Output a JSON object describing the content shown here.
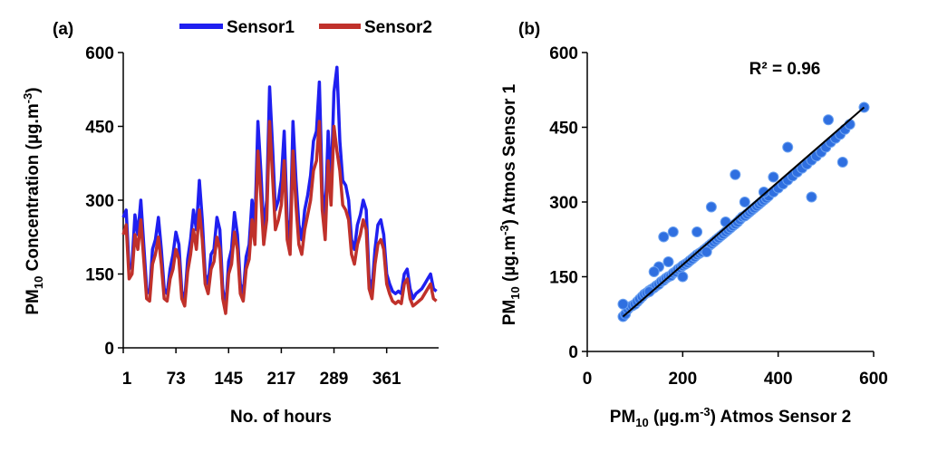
{
  "colors": {
    "sensor1": "#1f1ff0",
    "sensor2": "#c0312b",
    "scatter_fill": "#2f6fe0",
    "scatter_stroke": "#6aa0f0",
    "fit_line": "#000000"
  },
  "chart_data": [
    {
      "type": "line",
      "panel_label": "(a)",
      "xlabel": "No. of hours",
      "ylabel_main": "PM",
      "ylabel_sub": "10",
      "ylabel_rest": " Concentration (µg.m",
      "ylabel_sup": "-3",
      "ylabel_end": ")",
      "x_ticks": [
        "1",
        "73",
        "145",
        "217",
        "289",
        "361"
      ],
      "x_tick_values": [
        1,
        73,
        145,
        217,
        289,
        361
      ],
      "xlim": [
        1,
        432
      ],
      "y_ticks": [
        "0",
        "150",
        "300",
        "450",
        "600"
      ],
      "ylim": [
        0,
        600
      ],
      "legend": "top",
      "series": [
        {
          "name": "Sensor1",
          "x": [
            1,
            5,
            9,
            13,
            17,
            21,
            25,
            29,
            33,
            37,
            41,
            45,
            49,
            53,
            57,
            61,
            65,
            69,
            73,
            77,
            81,
            85,
            89,
            93,
            97,
            101,
            105,
            109,
            113,
            117,
            121,
            125,
            129,
            133,
            137,
            141,
            145,
            149,
            153,
            157,
            161,
            165,
            169,
            173,
            177,
            181,
            185,
            189,
            193,
            197,
            201,
            205,
            209,
            213,
            217,
            221,
            225,
            229,
            233,
            237,
            241,
            245,
            249,
            253,
            257,
            261,
            265,
            269,
            273,
            277,
            281,
            285,
            289,
            293,
            297,
            301,
            305,
            309,
            313,
            317,
            321,
            325,
            329,
            333,
            337,
            341,
            345,
            349,
            353,
            357,
            361,
            365,
            369,
            373,
            377,
            381,
            385,
            389,
            393,
            397,
            401,
            405,
            409,
            413,
            417,
            421,
            425,
            429
          ],
          "values": [
            265,
            280,
            160,
            170,
            270,
            230,
            300,
            210,
            120,
            110,
            200,
            220,
            265,
            200,
            120,
            110,
            160,
            190,
            235,
            210,
            115,
            95,
            180,
            220,
            280,
            240,
            340,
            260,
            150,
            130,
            190,
            200,
            265,
            240,
            120,
            80,
            175,
            200,
            275,
            230,
            130,
            110,
            185,
            210,
            300,
            250,
            460,
            360,
            240,
            300,
            530,
            410,
            280,
            300,
            340,
            440,
            260,
            220,
            460,
            340,
            250,
            220,
            280,
            310,
            350,
            420,
            440,
            540,
            320,
            260,
            440,
            330,
            520,
            570,
            420,
            340,
            330,
            300,
            220,
            200,
            250,
            270,
            300,
            280,
            140,
            120,
            200,
            250,
            260,
            230,
            150,
            130,
            115,
            110,
            115,
            110,
            150,
            160,
            120,
            100,
            110,
            115,
            120,
            130,
            140,
            150,
            120,
            115
          ],
          "color_key": "sensor1"
        },
        {
          "name": "Sensor2",
          "x": [
            1,
            5,
            9,
            13,
            17,
            21,
            25,
            29,
            33,
            37,
            41,
            45,
            49,
            53,
            57,
            61,
            65,
            69,
            73,
            77,
            81,
            85,
            89,
            93,
            97,
            101,
            105,
            109,
            113,
            117,
            121,
            125,
            129,
            133,
            137,
            141,
            145,
            149,
            153,
            157,
            161,
            165,
            169,
            173,
            177,
            181,
            185,
            189,
            193,
            197,
            201,
            205,
            209,
            213,
            217,
            221,
            225,
            229,
            233,
            237,
            241,
            245,
            249,
            253,
            257,
            261,
            265,
            269,
            273,
            277,
            281,
            285,
            289,
            293,
            297,
            301,
            305,
            309,
            313,
            317,
            321,
            325,
            329,
            333,
            337,
            341,
            345,
            349,
            353,
            357,
            361,
            365,
            369,
            373,
            377,
            381,
            385,
            389,
            393,
            397,
            401,
            405,
            409,
            413,
            417,
            421,
            425,
            429
          ],
          "values": [
            230,
            250,
            140,
            150,
            230,
            200,
            260,
            180,
            100,
            95,
            170,
            190,
            225,
            170,
            100,
            95,
            140,
            160,
            200,
            180,
            100,
            85,
            155,
            190,
            240,
            200,
            280,
            220,
            130,
            110,
            160,
            175,
            225,
            200,
            100,
            70,
            150,
            170,
            235,
            200,
            110,
            95,
            160,
            180,
            260,
            210,
            400,
            310,
            210,
            260,
            460,
            350,
            240,
            260,
            290,
            380,
            220,
            190,
            400,
            290,
            210,
            190,
            240,
            270,
            300,
            360,
            380,
            460,
            280,
            220,
            380,
            290,
            450,
            400,
            360,
            290,
            280,
            260,
            190,
            170,
            210,
            230,
            260,
            240,
            120,
            100,
            170,
            210,
            220,
            200,
            130,
            110,
            95,
            90,
            95,
            90,
            130,
            140,
            100,
            85,
            90,
            95,
            100,
            110,
            120,
            130,
            100,
            95
          ],
          "color_key": "sensor2"
        }
      ]
    },
    {
      "type": "scatter",
      "panel_label": "(b)",
      "xlabel_main": "PM",
      "xlabel_sub": "10",
      "xlabel_rest": " (µg.m",
      "xlabel_sup": "-3",
      "xlabel_end": ") Atmos Sensor 2",
      "ylabel_main": "PM",
      "ylabel_sub": "10",
      "ylabel_rest": " (µg.m",
      "ylabel_sup": "-3",
      "ylabel_end": ") Atmos Sensor 1",
      "x_ticks": [
        "0",
        "200",
        "400",
        "600"
      ],
      "xlim": [
        0,
        600
      ],
      "y_ticks": [
        "0",
        "150",
        "300",
        "450",
        "600"
      ],
      "ylim": [
        0,
        600
      ],
      "annotation": "R² = 0.96",
      "fit_line": {
        "x": [
          75,
          580
        ],
        "y": [
          70,
          490
        ]
      },
      "points": {
        "x": [
          75,
          80,
          85,
          90,
          95,
          100,
          105,
          110,
          115,
          120,
          125,
          130,
          135,
          140,
          145,
          150,
          155,
          160,
          165,
          170,
          175,
          180,
          185,
          190,
          195,
          200,
          205,
          210,
          215,
          220,
          225,
          230,
          235,
          240,
          245,
          250,
          255,
          260,
          265,
          270,
          275,
          280,
          285,
          290,
          295,
          300,
          305,
          310,
          315,
          320,
          325,
          330,
          335,
          340,
          345,
          350,
          355,
          360,
          365,
          370,
          375,
          380,
          390,
          400,
          410,
          420,
          430,
          440,
          450,
          460,
          470,
          480,
          490,
          500,
          510,
          520,
          530,
          540,
          550,
          580,
          75,
          150,
          160,
          180,
          140,
          200,
          250,
          310,
          420,
          470,
          535,
          505,
          130,
          170,
          230,
          260,
          290,
          330,
          370,
          390
        ],
        "y": [
          70,
          75,
          85,
          90,
          92,
          95,
          100,
          105,
          110,
          115,
          118,
          122,
          125,
          128,
          132,
          135,
          140,
          143,
          147,
          150,
          152,
          157,
          160,
          165,
          168,
          172,
          175,
          178,
          182,
          186,
          190,
          194,
          197,
          200,
          204,
          208,
          212,
          216,
          220,
          224,
          228,
          232,
          236,
          240,
          244,
          248,
          252,
          256,
          260,
          265,
          270,
          272,
          276,
          280,
          284,
          288,
          292,
          296,
          300,
          304,
          308,
          312,
          320,
          328,
          336,
          344,
          352,
          360,
          368,
          376,
          384,
          392,
          400,
          410,
          420,
          428,
          436,
          446,
          456,
          490,
          95,
          170,
          230,
          240,
          160,
          150,
          200,
          355,
          410,
          310,
          380,
          465,
          120,
          180,
          240,
          290,
          260,
          300,
          320,
          350
        ]
      }
    }
  ]
}
